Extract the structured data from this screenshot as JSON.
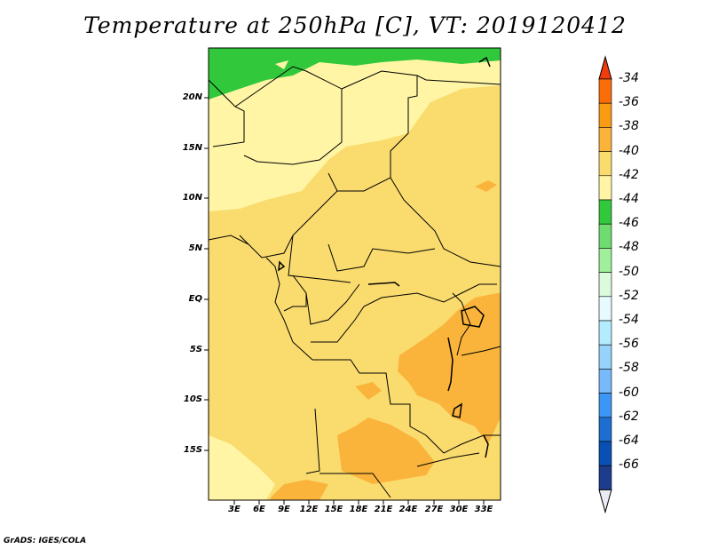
{
  "title": "Temperature at 250hPa [C], VT: 2019120412",
  "credit": "GrADS: IGES/COLA",
  "map": {
    "lat_ticks": [
      "20N",
      "15N",
      "10N",
      "5N",
      "EQ",
      "5S",
      "10S",
      "15S"
    ],
    "lon_ticks": [
      "3E",
      "6E",
      "9E",
      "12E",
      "15E",
      "18E",
      "21E",
      "24E",
      "27E",
      "30E",
      "33E"
    ]
  },
  "colorbar": {
    "labels": [
      "-34",
      "-36",
      "-38",
      "-40",
      "-42",
      "-44",
      "-46",
      "-48",
      "-50",
      "-52",
      "-54",
      "-56",
      "-58",
      "-60",
      "-62",
      "-64",
      "-66"
    ],
    "colors": [
      "#f03c0a",
      "#fa6e0a",
      "#fa9b14",
      "#fab43c",
      "#fadc6e",
      "#fff5a5",
      "#32c83c",
      "#6edc6e",
      "#a0f09b",
      "#dcfadc",
      "#e6faff",
      "#b4ecff",
      "#96d2fa",
      "#78b9fa",
      "#3c96f5",
      "#1e6ed2",
      "#0a50b4",
      "#1e3c8c",
      "#ebebf5"
    ]
  }
}
